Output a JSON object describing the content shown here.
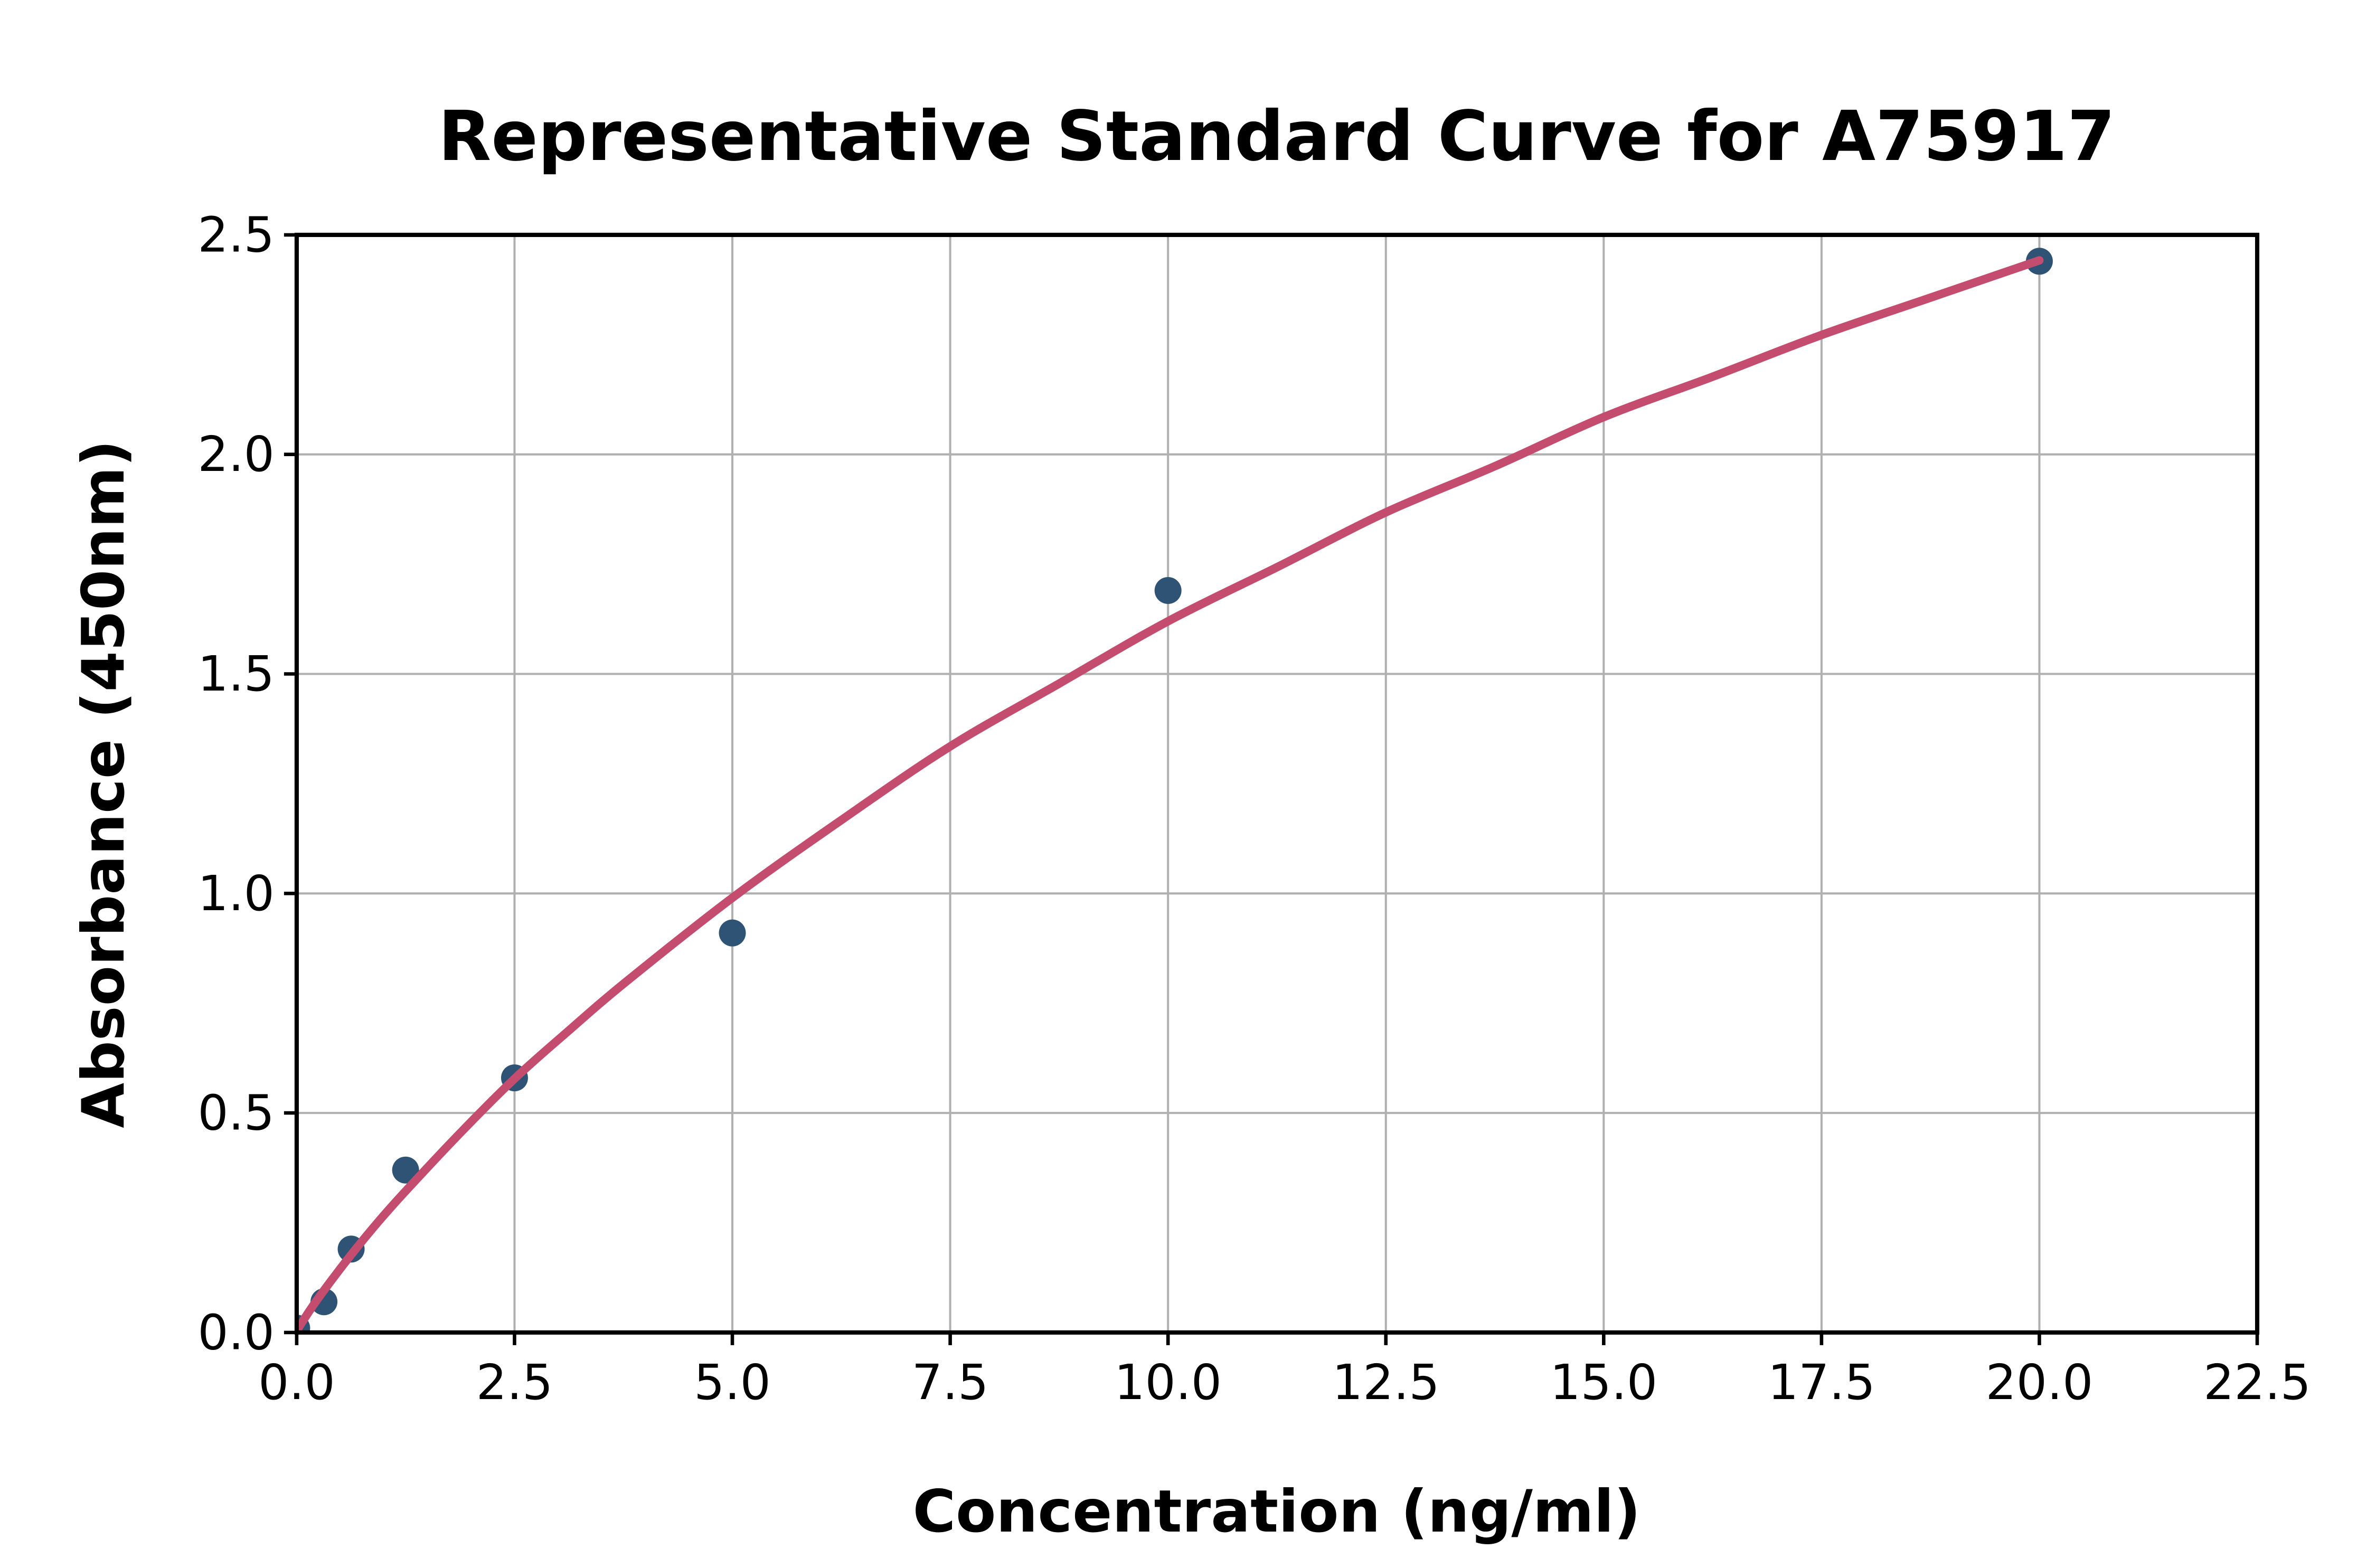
{
  "figure": {
    "background": "#ffffff"
  },
  "chart_data": {
    "type": "scatter",
    "title": "Representative Standard Curve for A75917",
    "xlabel": "Concentration (ng/ml)",
    "ylabel": "Absorbance (450nm)",
    "xlim": [
      0,
      22.5
    ],
    "ylim": [
      0,
      2.5
    ],
    "grid": true,
    "legend": "none",
    "xticks": {
      "values": [
        0,
        2.5,
        5,
        7.5,
        10,
        12.5,
        15,
        17.5,
        20,
        22.5
      ],
      "labels": [
        "0.0",
        "2.5",
        "5.0",
        "7.5",
        "10.0",
        "12.5",
        "15.0",
        "17.5",
        "20.0",
        "22.5"
      ]
    },
    "yticks": {
      "values": [
        0,
        0.5,
        1,
        1.5,
        2,
        2.5
      ],
      "labels": [
        "0.0",
        "0.5",
        "1.0",
        "1.5",
        "2.0",
        "2.5"
      ]
    },
    "points": {
      "name": "standards",
      "x": [
        0,
        0.313,
        0.625,
        1.25,
        2.5,
        5,
        10,
        20
      ],
      "y": [
        0.01,
        0.07,
        0.19,
        0.37,
        0.58,
        0.91,
        1.69,
        2.44
      ]
    },
    "fit_curve": {
      "name": "4pl-fit",
      "x": [
        0,
        0.156,
        0.313,
        0.625,
        0.94,
        1.25,
        1.875,
        2.5,
        3.125,
        3.75,
        5,
        6.25,
        7.5,
        8.75,
        10,
        11.25,
        12.5,
        13.75,
        15,
        16.25,
        17.5,
        18.75,
        20
      ],
      "y": [
        0.004,
        0.052,
        0.096,
        0.177,
        0.253,
        0.322,
        0.454,
        0.578,
        0.688,
        0.794,
        0.99,
        1.167,
        1.335,
        1.478,
        1.62,
        1.743,
        1.868,
        1.973,
        2.085,
        2.177,
        2.272,
        2.357,
        2.442
      ]
    },
    "colors": {
      "points": "#2e5374",
      "curve": "#c44d6f",
      "grid": "#b0b0b0",
      "spine": "#000000",
      "text": "#000000"
    }
  }
}
